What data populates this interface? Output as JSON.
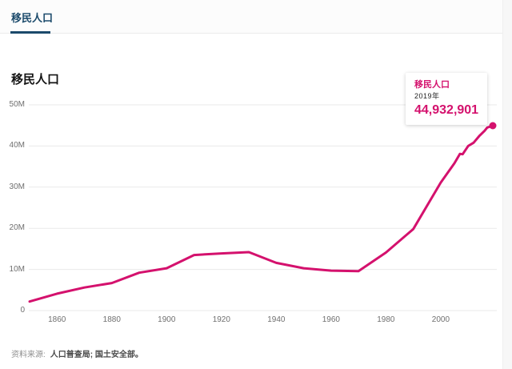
{
  "tab_bar": {
    "active_tab": "移民人口"
  },
  "chart": {
    "title": "移民人口",
    "tooltip": {
      "title": "移民人口",
      "year": "2019年",
      "value": "44,932,901"
    }
  },
  "footer": {
    "source_label": "资料来源:",
    "source_value": "人口普查局; 国土安全部。"
  },
  "colors": {
    "accent": "#d4116d",
    "tab": "#1b4a6b",
    "grid": "#e9e9e9",
    "tick_text": "#6f6f6f"
  },
  "chart_data": {
    "type": "line",
    "title": "移民人口",
    "xlabel": "",
    "ylabel": "",
    "xlim": [
      1850,
      2019
    ],
    "ylim": [
      0,
      50000000
    ],
    "grid": "horizontal",
    "legend_position": "none",
    "series": [
      {
        "name": "移民人口",
        "x": [
          1850,
          1860,
          1870,
          1880,
          1890,
          1900,
          1910,
          1920,
          1930,
          1940,
          1950,
          1960,
          1970,
          1980,
          1990,
          2000,
          2005,
          2007,
          2008,
          2010,
          2012,
          2014,
          2016,
          2017,
          2018,
          2019
        ],
        "values": [
          2200000,
          4100000,
          5600000,
          6700000,
          9200000,
          10300000,
          13500000,
          13900000,
          14200000,
          11600000,
          10300000,
          9700000,
          9600000,
          14100000,
          19800000,
          31100000,
          35800000,
          38100000,
          38000000,
          40000000,
          40800000,
          42400000,
          43700000,
          44500000,
          44700000,
          44932901
        ]
      }
    ],
    "x_ticks": [
      1860,
      1880,
      1900,
      1920,
      1940,
      1960,
      1980,
      2000
    ],
    "y_ticks": [
      {
        "label": "0",
        "value": 0
      },
      {
        "label": "10M",
        "value": 10000000
      },
      {
        "label": "20M",
        "value": 20000000
      },
      {
        "label": "30M",
        "value": 30000000
      },
      {
        "label": "40M",
        "value": 40000000
      },
      {
        "label": "50M",
        "value": 50000000
      }
    ],
    "end_marker": {
      "x": 2019,
      "value": 44932901
    }
  }
}
